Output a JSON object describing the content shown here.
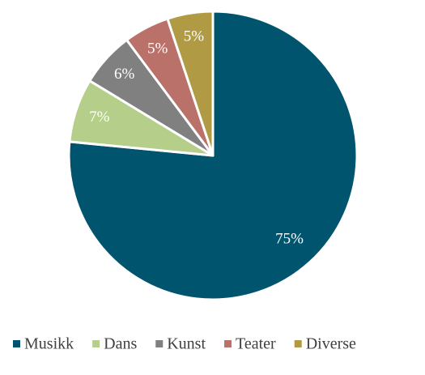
{
  "chart_data": {
    "type": "pie",
    "categories": [
      "Musikk",
      "Dans",
      "Kunst",
      "Teater",
      "Diverse"
    ],
    "values": [
      75,
      7,
      6,
      5,
      5
    ],
    "value_labels": [
      "75%",
      "7%",
      "6%",
      "5%",
      "5%"
    ],
    "colors": [
      "#00546e",
      "#b5cf8a",
      "#808080",
      "#b9716a",
      "#b09a43"
    ],
    "legend": "bottom"
  }
}
